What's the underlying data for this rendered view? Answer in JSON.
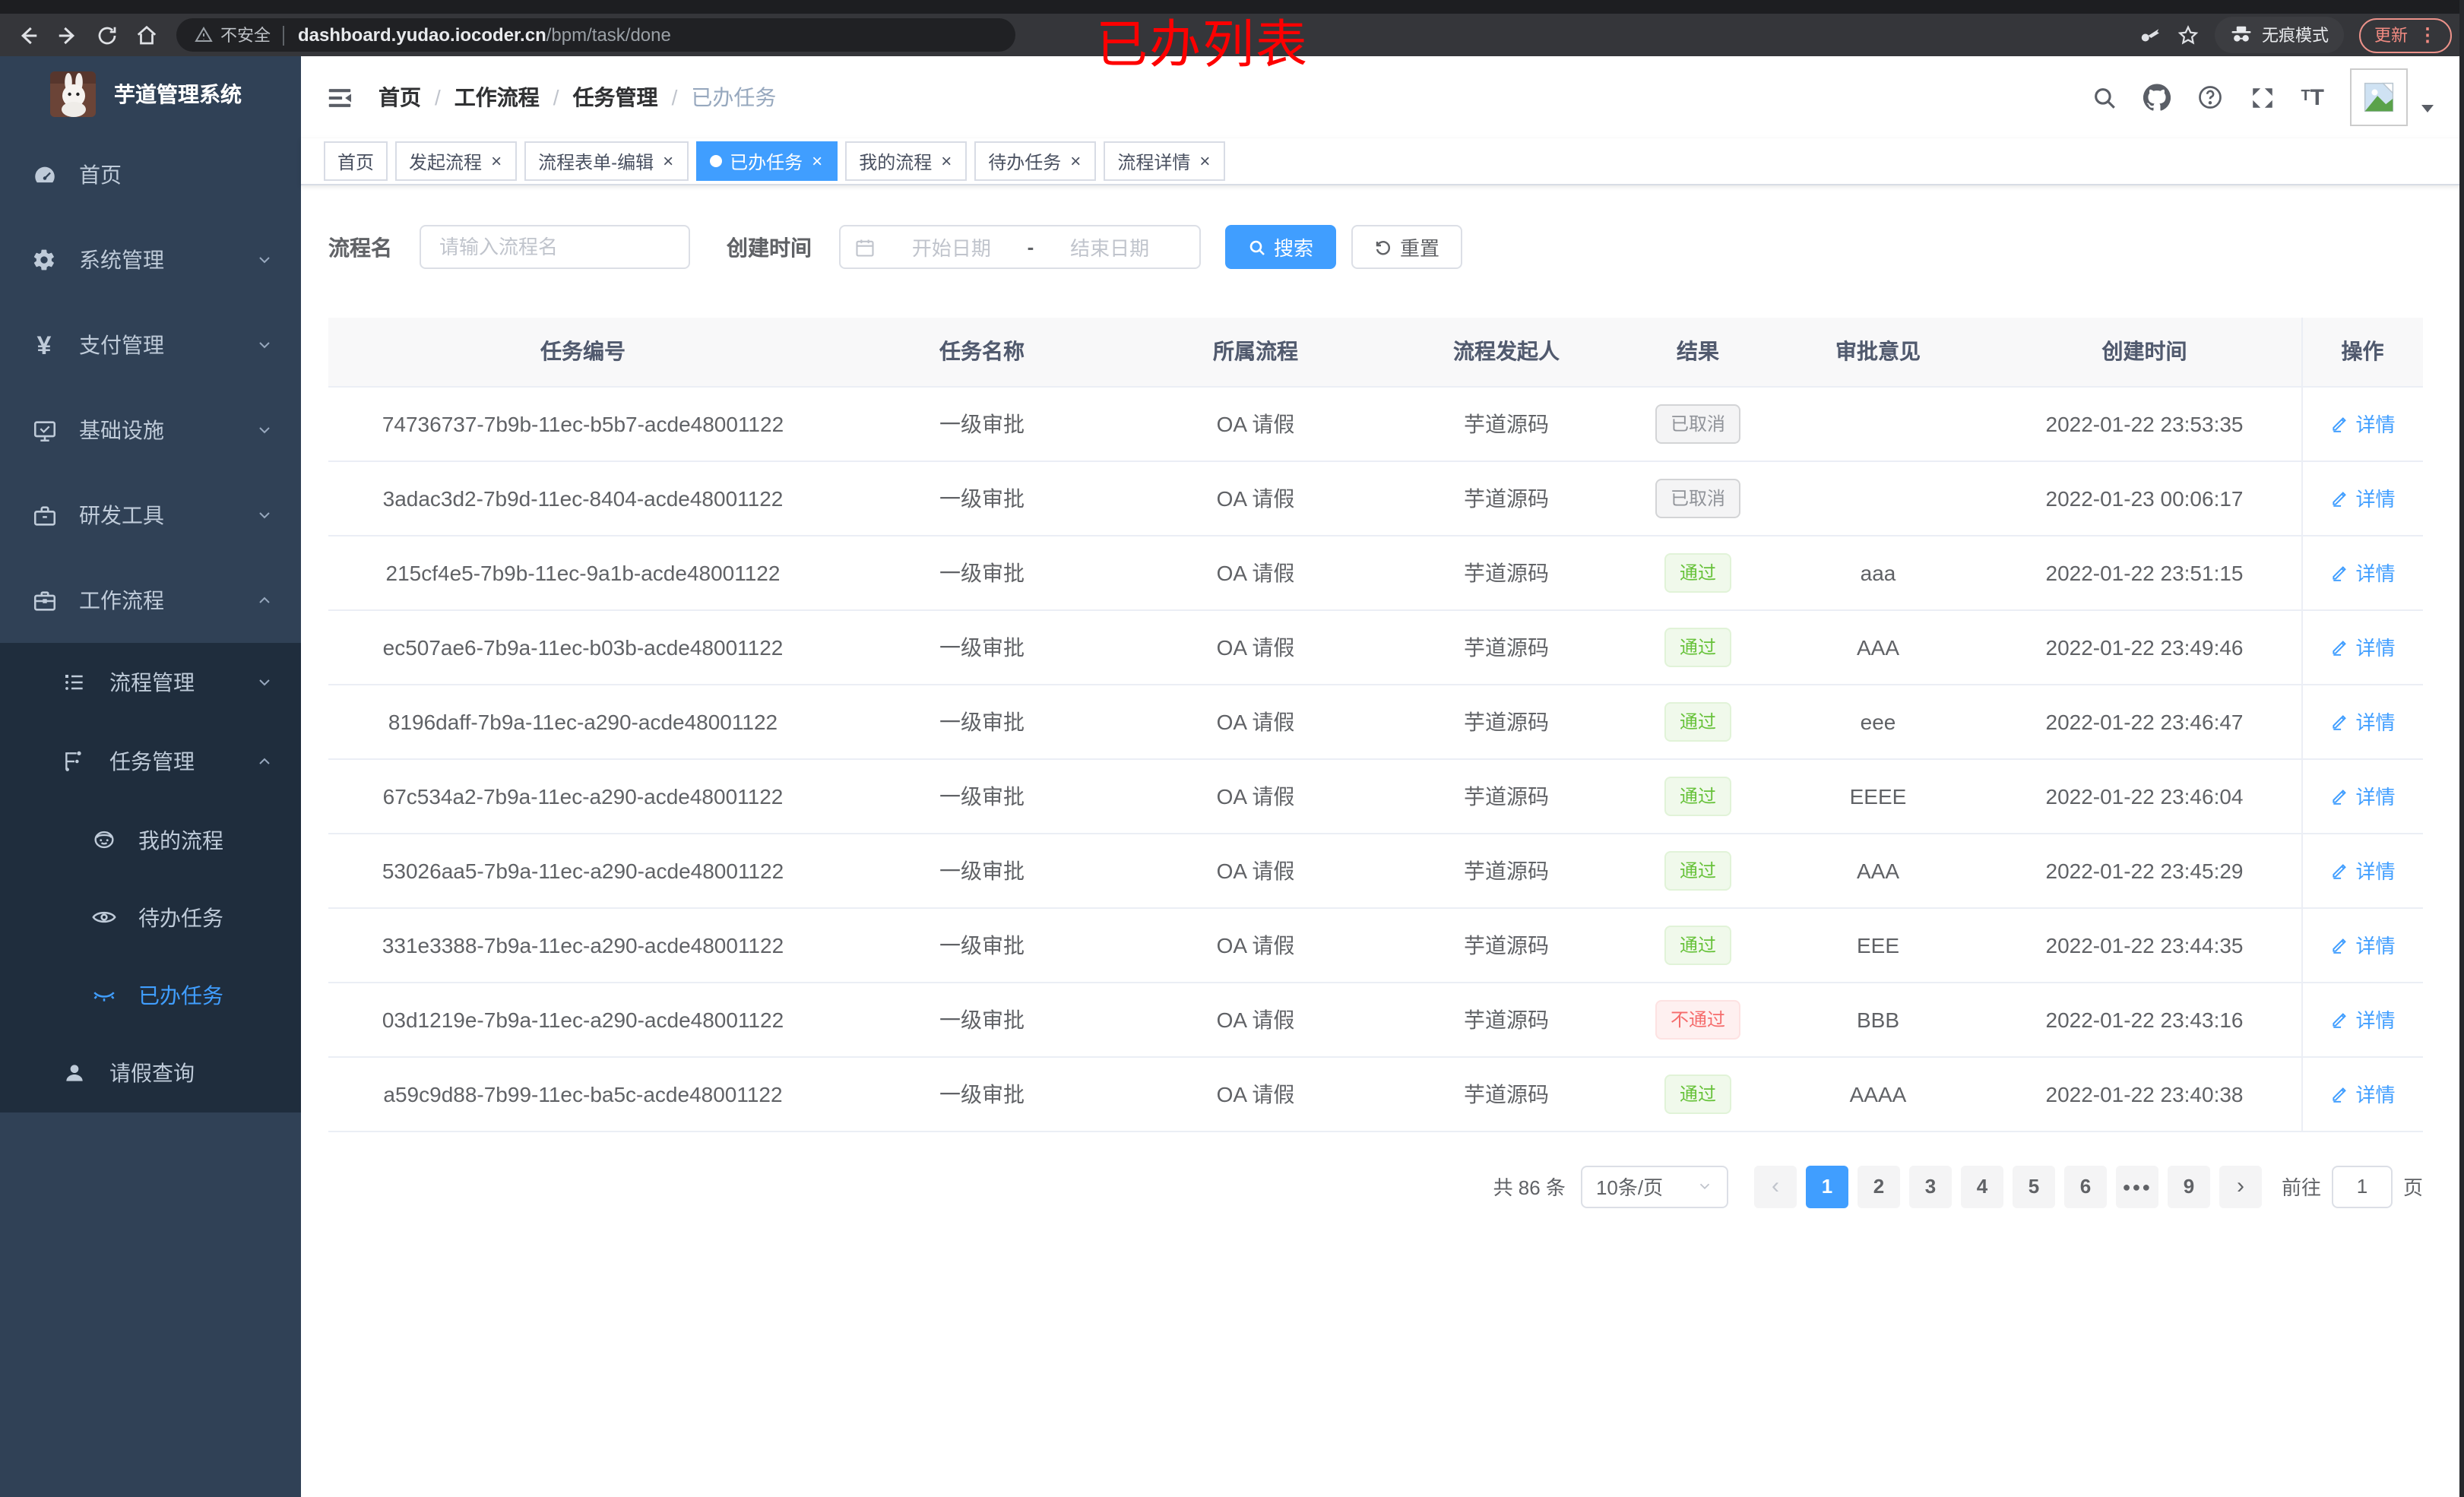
{
  "browser": {
    "security": "不安全",
    "url_host": "dashboard.yudao.iocoder.cn",
    "url_path": "/bpm/task/done",
    "incognito": "无痕模式",
    "update": "更新"
  },
  "annotation": {
    "text": "已办列表",
    "color": "#fe0000"
  },
  "sidebar": {
    "title": "芋道管理系统",
    "items": {
      "home": "首页",
      "system": "系统管理",
      "payment": "支付管理",
      "infra": "基础设施",
      "devtools": "研发工具",
      "workflow": "工作流程",
      "process_mgmt": "流程管理",
      "task_mgmt": "任务管理",
      "my_process": "我的流程",
      "todo_tasks": "待办任务",
      "done_tasks": "已办任务",
      "leave_query": "请假查询"
    }
  },
  "navbar": {
    "breadcrumb": [
      "首页",
      "工作流程",
      "任务管理",
      "已办任务"
    ]
  },
  "tabs": {
    "items": [
      {
        "label": "首页",
        "closable": false,
        "active": false
      },
      {
        "label": "发起流程",
        "closable": true,
        "active": false
      },
      {
        "label": "流程表单-编辑",
        "closable": true,
        "active": false
      },
      {
        "label": "已办任务",
        "closable": true,
        "active": true
      },
      {
        "label": "我的流程",
        "closable": true,
        "active": false
      },
      {
        "label": "待办任务",
        "closable": true,
        "active": false
      },
      {
        "label": "流程详情",
        "closable": true,
        "active": false
      }
    ]
  },
  "filters": {
    "name_label": "流程名",
    "name_placeholder": "请输入流程名",
    "name_value": "",
    "time_label": "创建时间",
    "start_placeholder": "开始日期",
    "separator": "-",
    "end_placeholder": "结束日期",
    "search_label": "搜索",
    "reset_label": "重置"
  },
  "table": {
    "headers": [
      "任务编号",
      "任务名称",
      "所属流程",
      "流程发起人",
      "结果",
      "审批意见",
      "创建时间",
      "操作"
    ],
    "action_label": "详情",
    "rows": [
      {
        "task_id": "74736737-7b9b-11ec-b5b7-acde48001122",
        "task_name": "一级审批",
        "process": "OA 请假",
        "starter": "芋道源码",
        "result": "已取消",
        "result_type": "info",
        "comment": "",
        "created_at": "2022-01-22 23:53:35"
      },
      {
        "task_id": "3adac3d2-7b9d-11ec-8404-acde48001122",
        "task_name": "一级审批",
        "process": "OA 请假",
        "starter": "芋道源码",
        "result": "已取消",
        "result_type": "info",
        "comment": "",
        "created_at": "2022-01-23 00:06:17"
      },
      {
        "task_id": "215cf4e5-7b9b-11ec-9a1b-acde48001122",
        "task_name": "一级审批",
        "process": "OA 请假",
        "starter": "芋道源码",
        "result": "通过",
        "result_type": "success",
        "comment": "aaa",
        "created_at": "2022-01-22 23:51:15"
      },
      {
        "task_id": "ec507ae6-7b9a-11ec-b03b-acde48001122",
        "task_name": "一级审批",
        "process": "OA 请假",
        "starter": "芋道源码",
        "result": "通过",
        "result_type": "success",
        "comment": "AAA",
        "created_at": "2022-01-22 23:49:46"
      },
      {
        "task_id": "8196daff-7b9a-11ec-a290-acde48001122",
        "task_name": "一级审批",
        "process": "OA 请假",
        "starter": "芋道源码",
        "result": "通过",
        "result_type": "success",
        "comment": "eee",
        "created_at": "2022-01-22 23:46:47"
      },
      {
        "task_id": "67c534a2-7b9a-11ec-a290-acde48001122",
        "task_name": "一级审批",
        "process": "OA 请假",
        "starter": "芋道源码",
        "result": "通过",
        "result_type": "success",
        "comment": "EEEE",
        "created_at": "2022-01-22 23:46:04"
      },
      {
        "task_id": "53026aa5-7b9a-11ec-a290-acde48001122",
        "task_name": "一级审批",
        "process": "OA 请假",
        "starter": "芋道源码",
        "result": "通过",
        "result_type": "success",
        "comment": "AAA",
        "created_at": "2022-01-22 23:45:29"
      },
      {
        "task_id": "331e3388-7b9a-11ec-a290-acde48001122",
        "task_name": "一级审批",
        "process": "OA 请假",
        "starter": "芋道源码",
        "result": "通过",
        "result_type": "success",
        "comment": "EEE",
        "created_at": "2022-01-22 23:44:35"
      },
      {
        "task_id": "03d1219e-7b9a-11ec-a290-acde48001122",
        "task_name": "一级审批",
        "process": "OA 请假",
        "starter": "芋道源码",
        "result": "不通过",
        "result_type": "danger",
        "comment": "BBB",
        "created_at": "2022-01-22 23:43:16"
      },
      {
        "task_id": "a59c9d88-7b99-11ec-ba5c-acde48001122",
        "task_name": "一级审批",
        "process": "OA 请假",
        "starter": "芋道源码",
        "result": "通过",
        "result_type": "success",
        "comment": "AAAA",
        "created_at": "2022-01-22 23:40:38"
      }
    ]
  },
  "pagination": {
    "total_label": "共 86 条",
    "page_size": "10条/页",
    "prev": "‹",
    "next": "›",
    "pages": [
      "1",
      "2",
      "3",
      "4",
      "5",
      "6",
      "more",
      "9"
    ],
    "active_page": "1",
    "goto_label": "前往",
    "goto_value": "1",
    "unit": "页"
  },
  "colors": {
    "primary": "#409eff",
    "success": "#67c23a",
    "danger": "#f56c6c",
    "info": "#909399",
    "sidebar_bg": "#304156",
    "submenu_bg": "#1f2d3d"
  }
}
